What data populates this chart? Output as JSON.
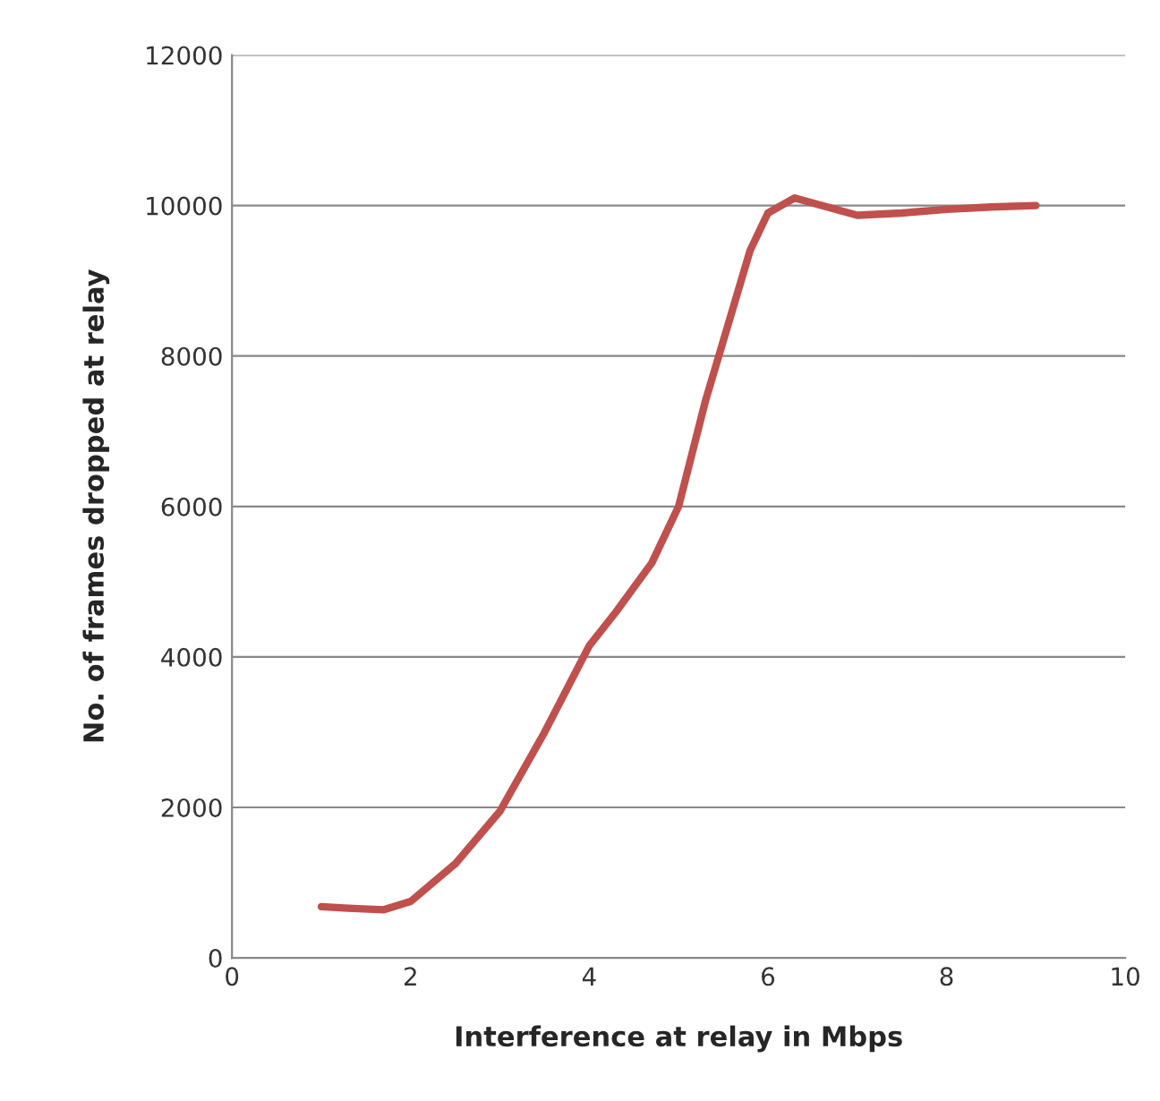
{
  "chart_data": {
    "type": "line",
    "xlabel": "Interference at relay in Mbps",
    "ylabel": "No. of frames dropped at relay",
    "x": [
      1,
      1.3,
      1.7,
      2,
      2.5,
      3,
      3.5,
      4,
      4.3,
      4.7,
      5,
      5.3,
      5.5,
      5.8,
      6,
      6.3,
      6.6,
      7,
      7.5,
      8,
      8.5,
      9
    ],
    "series": [
      {
        "color": "#c0504d",
        "values": [
          680,
          660,
          640,
          750,
          1250,
          1950,
          3000,
          4150,
          4600,
          5250,
          6000,
          7400,
          8200,
          9400,
          9900,
          10100,
          10000,
          9870,
          9900,
          9950,
          9980,
          10000
        ]
      }
    ],
    "xlim": [
      0,
      10
    ],
    "xticks": [
      0,
      2,
      4,
      6,
      8,
      10
    ],
    "ylim": [
      0,
      12000
    ],
    "yticks": [
      0,
      2000,
      4000,
      6000,
      8000,
      10000,
      12000
    ],
    "grid": "y",
    "line_style": "solid"
  }
}
